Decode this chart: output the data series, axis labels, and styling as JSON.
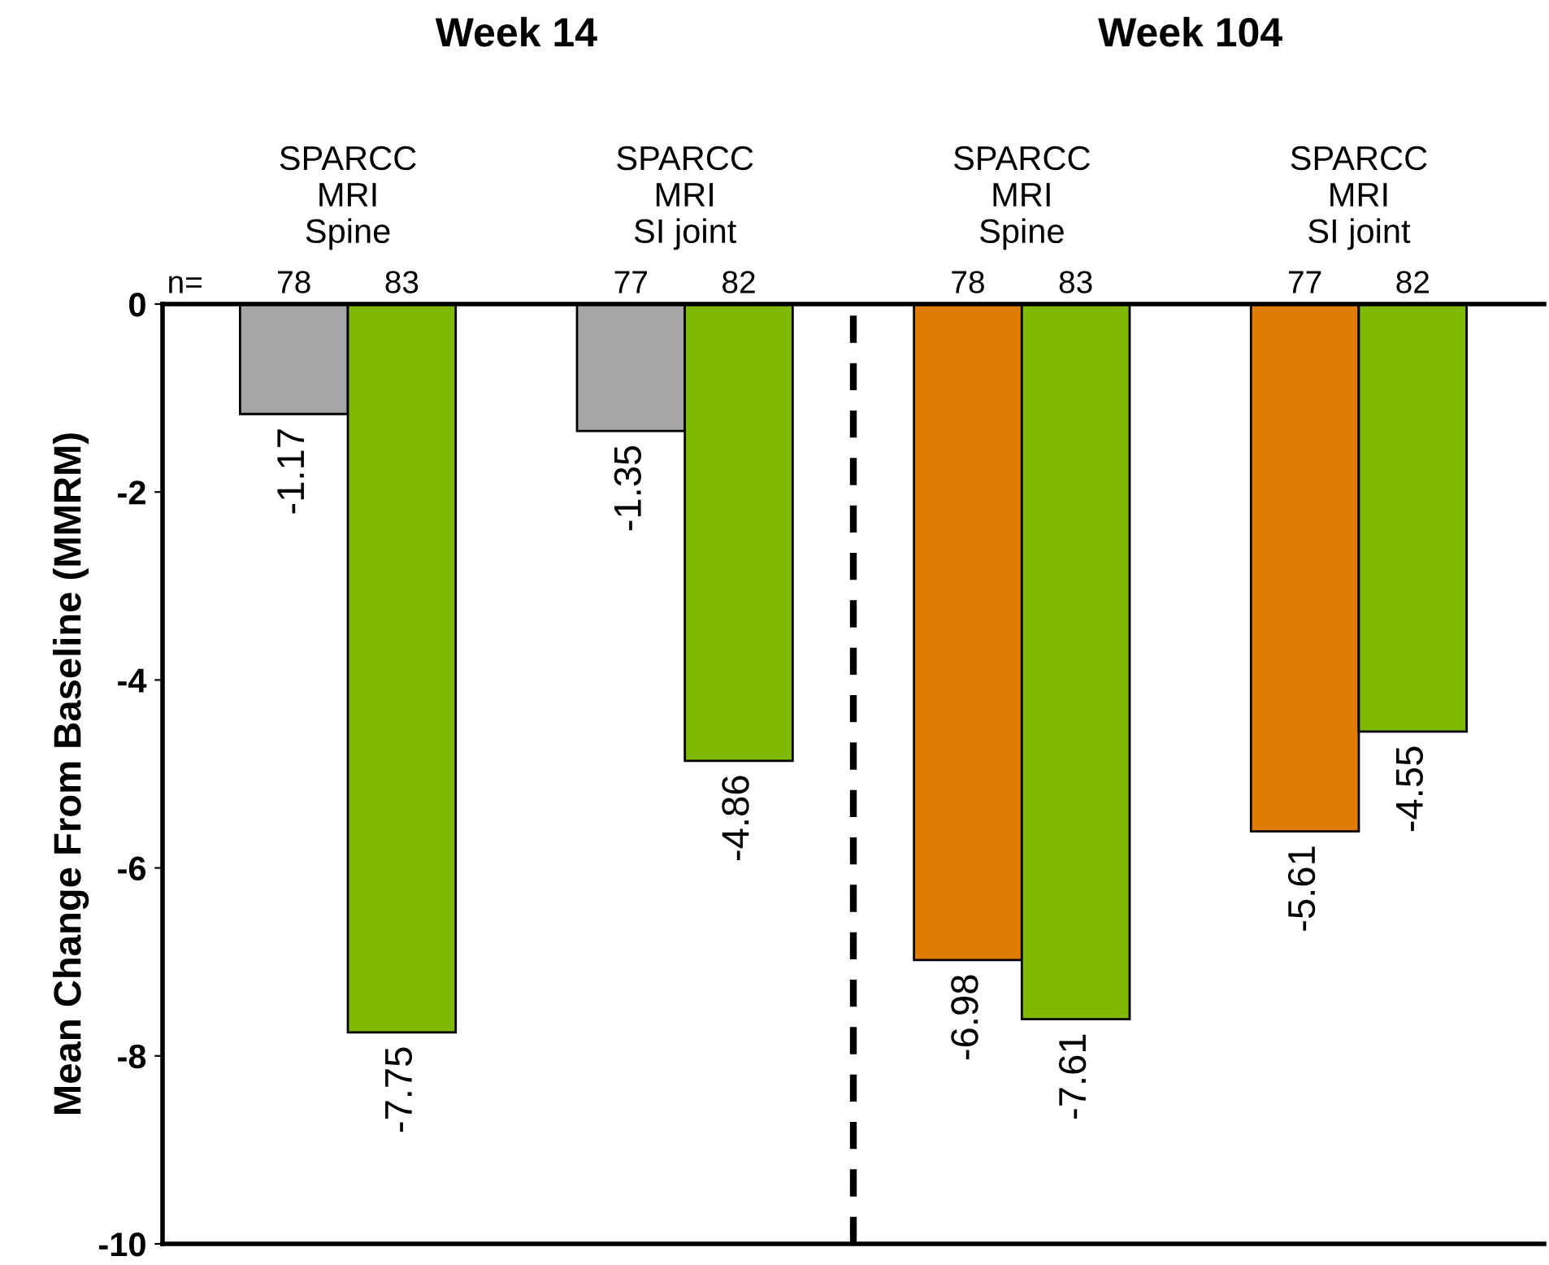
{
  "chart_data": {
    "type": "bar",
    "categories": [
      "SPARCC\nMRI\nSpine",
      "SPARCC\nMRI\nSI joint",
      "SPARCC\nMRI\nSpine",
      "SPARCC\nMRI\nSI joint"
    ],
    "series": [
      {
        "colors": [
          "#a6a6a8",
          "#a6a6a8",
          "#e07c00",
          "#e07c00"
        ],
        "values": [
          -1.17,
          -1.35,
          -6.98,
          -5.61
        ]
      },
      {
        "color": "#7fba00",
        "values": [
          -7.75,
          -4.86,
          -7.61,
          -4.55
        ]
      }
    ],
    "ylabel": "Mean Change From Baseline (MMRM)",
    "ylim": [
      -10,
      0
    ],
    "yticks": [
      -10,
      -8,
      -6,
      -4,
      -2,
      0
    ],
    "data_labels": true,
    "grid": false,
    "annotations": [
      "Week 14",
      "Week 104",
      "n=",
      "78",
      "83",
      "77",
      "82",
      "78",
      "83",
      "77",
      "82"
    ]
  }
}
